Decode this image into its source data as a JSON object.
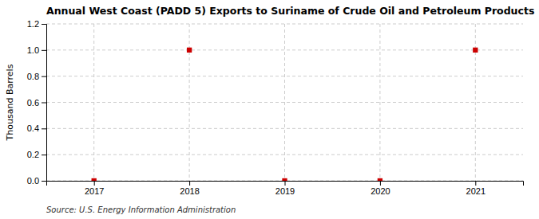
{
  "chart_data": {
    "type": "scatter",
    "title": "Annual West Coast (PADD 5) Exports to Suriname of Crude Oil and Petroleum Products",
    "y_label": "Thousand Barrels",
    "annotations": [
      "Source: U.S. Energy Information Administration"
    ],
    "x": [
      2017,
      2018,
      2019,
      2020,
      2021
    ],
    "values": [
      0,
      1,
      0,
      0,
      1
    ],
    "color": "#cc0000",
    "marker": "square",
    "xlim": [
      2016.5,
      2021.5
    ],
    "ylim": [
      0.0,
      1.2
    ],
    "xticks": [
      2017,
      2018,
      2019,
      2020,
      2021
    ],
    "yticks": [
      {
        "value": 0.0,
        "label": "0.0"
      },
      0.2,
      0.4,
      0.6,
      0.8,
      {
        "value": 1.0,
        "label": "1.0"
      },
      1.2
    ],
    "grid": true
  }
}
